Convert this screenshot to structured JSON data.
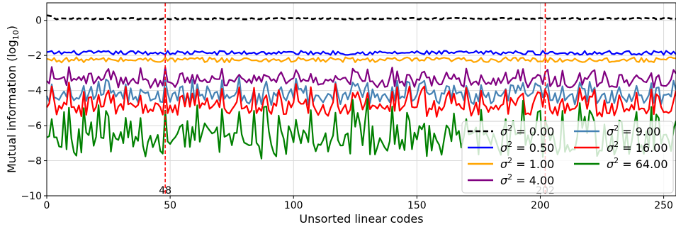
{
  "chart_data": {
    "type": "line",
    "title": "",
    "xlabel": "Unsorted linear codes",
    "ylabel": "Mutual information (log",
    "ylabel_sub": "10",
    "ylabel_close": ")",
    "xlim": [
      0,
      255
    ],
    "ylim": [
      -10,
      1
    ],
    "grid": true,
    "legend_position": "lower-right",
    "x_ticks": [
      0,
      50,
      100,
      150,
      200,
      250
    ],
    "x_tick_labels": [
      "0",
      "50",
      "100",
      "150",
      "200",
      "250"
    ],
    "y_ticks": [
      0,
      -2,
      -4,
      -6,
      -8,
      -10
    ],
    "y_tick_labels": [
      "0",
      "−2",
      "−4",
      "−6",
      "−8",
      "−10"
    ],
    "n_points": 256,
    "series": [
      {
        "name": "σ² = 0.00",
        "legend_prefix": "σ",
        "legend_sup": "2",
        "legend_value": " = 0.00",
        "color": "#000000",
        "dashed": true,
        "baseline": 0.1,
        "amplitude": 0.08,
        "spike": 0.0
      },
      {
        "name": "σ² = 0.50",
        "legend_prefix": "σ",
        "legend_sup": "2",
        "legend_value": " = 0.50",
        "color": "#0000ff",
        "dashed": false,
        "baseline": -1.85,
        "amplitude": 0.12,
        "spike": 0.0
      },
      {
        "name": "σ² = 1.00",
        "legend_prefix": "σ",
        "legend_sup": "2",
        "legend_value": " = 1.00",
        "color": "#ffa500",
        "dashed": false,
        "baseline": -2.25,
        "amplitude": 0.15,
        "spike": 0.0
      },
      {
        "name": "σ² = 4.00",
        "legend_prefix": "σ",
        "legend_sup": "2",
        "legend_value": " = 4.00",
        "color": "#800080",
        "dashed": false,
        "baseline": -3.6,
        "amplitude": 0.3,
        "spike": 0.8
      },
      {
        "name": "σ² = 9.00",
        "legend_prefix": "σ",
        "legend_sup": "2",
        "legend_value": " = 9.00",
        "color": "#4682b4",
        "dashed": false,
        "baseline": -4.5,
        "amplitude": 0.35,
        "spike": 1.1
      },
      {
        "name": "σ² = 16.00",
        "legend_prefix": "σ",
        "legend_sup": "2",
        "legend_value": " = 16.00",
        "color": "#ff0000",
        "dashed": false,
        "baseline": -5.2,
        "amplitude": 0.35,
        "spike": 1.4
      },
      {
        "name": "σ² = 64.00",
        "legend_prefix": "σ",
        "legend_sup": "2",
        "legend_value": " = 64.00",
        "color": "#008000",
        "dashed": false,
        "baseline": -7.2,
        "amplitude": 0.7,
        "spike": 2.3
      }
    ],
    "vlines": [
      {
        "x": 48,
        "label": "48",
        "color": "#ff0000"
      },
      {
        "x": 202,
        "label": "202",
        "color": "#ff0000"
      }
    ]
  }
}
